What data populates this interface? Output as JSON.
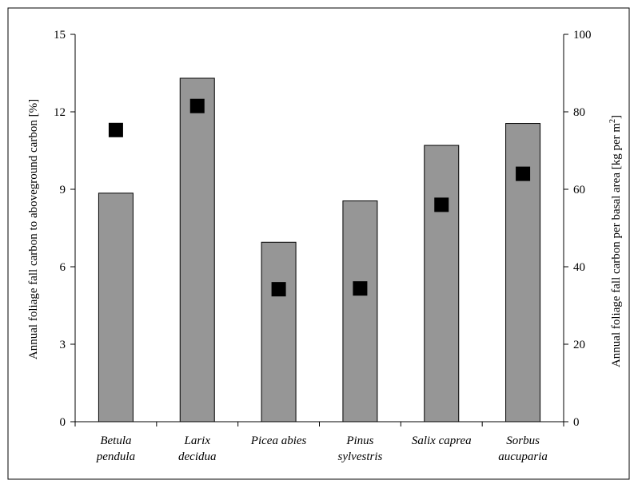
{
  "chart_data": {
    "type": "bar",
    "categories": [
      [
        "Betula",
        "pendula"
      ],
      [
        "Larix",
        "decidua"
      ],
      [
        "Picea abies"
      ],
      [
        "Pinus",
        "sylvestris"
      ],
      [
        "Salix caprea"
      ],
      [
        "Sorbus",
        "aucuparia"
      ]
    ],
    "series": [
      {
        "type": "bar",
        "axis": "left",
        "values": [
          8.85,
          13.3,
          6.95,
          8.55,
          10.7,
          11.55
        ],
        "color": "#969696"
      },
      {
        "type": "scatter",
        "axis": "right",
        "marker": "square",
        "values": [
          75.3,
          81.5,
          34.2,
          34.4,
          56.0,
          64.0
        ],
        "color": "#000000"
      }
    ],
    "ylabel_left": "Annual foliage fall carbon to aboveground carbon [%]",
    "ylabel_right_prefix": "Annual foliage fall carbon per basal area [kg per m",
    "ylabel_right_sup": "2",
    "ylabel_right_suffix": "]",
    "ylim_left": [
      0,
      15
    ],
    "yticks_left": [
      0,
      3,
      6,
      9,
      12,
      15
    ],
    "ylim_right": [
      0,
      100
    ],
    "yticks_right": [
      0,
      20,
      40,
      60,
      80,
      100
    ],
    "grid": false,
    "legend": "none",
    "colors": {
      "bar_fill": "#969696",
      "marker": "#000000",
      "axis": "#000000"
    }
  }
}
